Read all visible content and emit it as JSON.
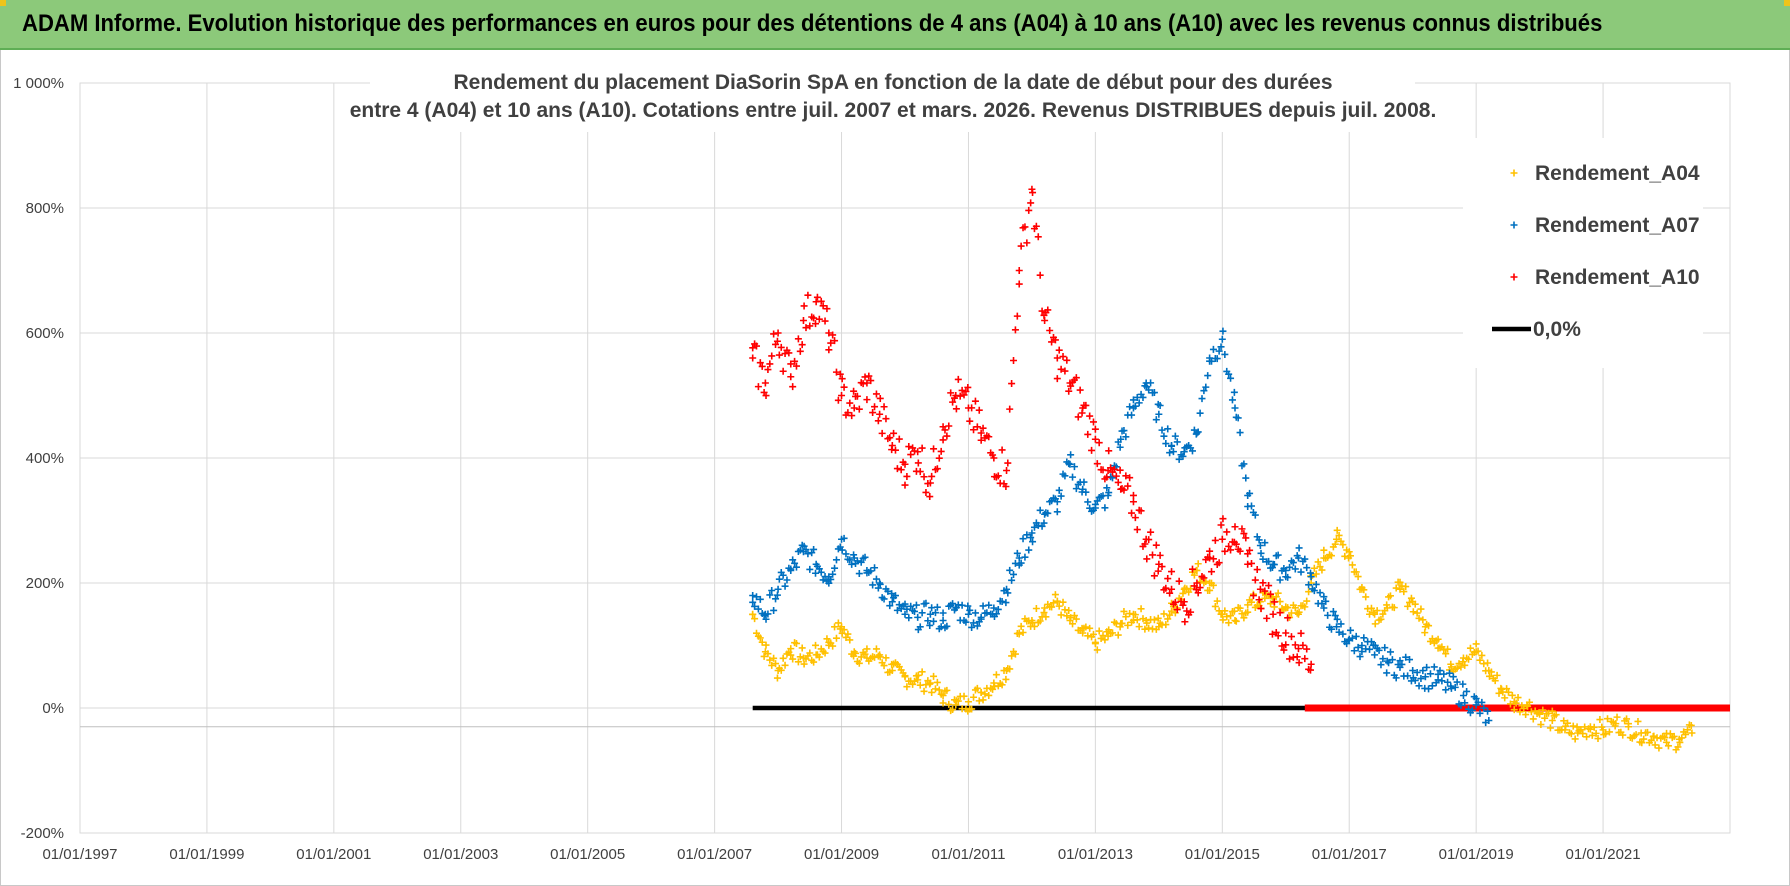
{
  "header": {
    "title": "ADAM Informe. Evolution historique des performances en euros pour des détentions de 4 ans (A04) à 10 ans (A10) avec les revenus connus distribués"
  },
  "colors": {
    "banner": "#8cc97a",
    "a04": "#ffc000",
    "a07": "#0070c0",
    "a10": "#ff0000",
    "zero": "#000000",
    "grid": "#d9d9d9"
  },
  "chart_data": {
    "type": "scatter",
    "title_lines": [
      "Rendement du placement DiaSorin SpA en fonction de la date de début pour des durées",
      "entre 4 (A04) et 10 ans (A10).  Cotations entre juil. 2007 et mars. 2026. Revenus DISTRIBUES depuis juil. 2008."
    ],
    "xlabel": "",
    "ylabel": "",
    "xlim": [
      1997.0,
      2023.0
    ],
    "ylim": [
      -200,
      1000
    ],
    "grid": true,
    "legend_position": "top-right",
    "x_ticks": [
      {
        "value": 1997,
        "label": "01/01/1997"
      },
      {
        "value": 1999,
        "label": "01/01/1999"
      },
      {
        "value": 2001,
        "label": "01/01/2001"
      },
      {
        "value": 2003,
        "label": "01/01/2003"
      },
      {
        "value": 2005,
        "label": "01/01/2005"
      },
      {
        "value": 2007,
        "label": "01/01/2007"
      },
      {
        "value": 2009,
        "label": "01/01/2009"
      },
      {
        "value": 2011,
        "label": "01/01/2011"
      },
      {
        "value": 2013,
        "label": "01/01/2013"
      },
      {
        "value": 2015,
        "label": "01/01/2015"
      },
      {
        "value": 2017,
        "label": "01/01/2017"
      },
      {
        "value": 2019,
        "label": "01/01/2019"
      },
      {
        "value": 2021,
        "label": "01/01/2021"
      }
    ],
    "y_ticks": [
      {
        "value": 1000,
        "label": "1 000%"
      },
      {
        "value": 800,
        "label": "800%"
      },
      {
        "value": 600,
        "label": "600%"
      },
      {
        "value": 400,
        "label": "400%"
      },
      {
        "value": 200,
        "label": "200%"
      },
      {
        "value": 0,
        "label": "0%"
      },
      {
        "value": -200,
        "label": "-200%"
      }
    ],
    "legend": [
      {
        "name": "Rendement_A04",
        "marker": "plus"
      },
      {
        "name": "Rendement_A07",
        "marker": "plus"
      },
      {
        "name": "Rendement_A10",
        "marker": "plus"
      },
      {
        "name": "0,0%",
        "marker": "line"
      }
    ],
    "series": [
      {
        "name": "Rendement_A04",
        "x": [
          2007.6,
          2007.8,
          2008.0,
          2008.2,
          2008.4,
          2008.6,
          2008.8,
          2009.0,
          2009.2,
          2009.4,
          2009.6,
          2009.8,
          2010.0,
          2010.2,
          2010.4,
          2010.6,
          2010.8,
          2011.0,
          2011.2,
          2011.4,
          2011.6,
          2011.8,
          2012.0,
          2012.2,
          2012.4,
          2012.6,
          2012.8,
          2013.0,
          2013.2,
          2013.4,
          2013.6,
          2013.8,
          2014.0,
          2014.2,
          2014.4,
          2014.6,
          2014.8,
          2015.0,
          2015.2,
          2015.4,
          2015.6,
          2015.8,
          2016.0,
          2016.2,
          2016.4,
          2016.6,
          2016.8,
          2017.0,
          2017.2,
          2017.4,
          2017.6,
          2017.8,
          2018.0,
          2018.2,
          2018.4,
          2018.6,
          2018.8,
          2019.0,
          2019.2,
          2019.4,
          2019.6,
          2019.8,
          2020.0,
          2020.2,
          2020.4,
          2020.6,
          2020.8,
          2021.0,
          2021.2,
          2021.4,
          2021.6,
          2021.8,
          2022.0,
          2022.2,
          2022.4
        ],
        "values": [
          150,
          90,
          60,
          95,
          80,
          85,
          105,
          130,
          90,
          80,
          85,
          60,
          50,
          45,
          40,
          20,
          5,
          10,
          25,
          40,
          60,
          120,
          140,
          160,
          170,
          140,
          120,
          105,
          115,
          135,
          150,
          140,
          130,
          155,
          190,
          220,
          200,
          150,
          140,
          165,
          170,
          175,
          160,
          150,
          200,
          240,
          270,
          250,
          190,
          150,
          160,
          190,
          170,
          130,
          110,
          70,
          80,
          90,
          60,
          30,
          10,
          5,
          -10,
          -20,
          -35,
          -40,
          -30,
          -35,
          -25,
          -30,
          -40,
          -45,
          -55,
          -50,
          -40
        ]
      },
      {
        "name": "Rendement_A07",
        "x": [
          2007.6,
          2007.8,
          2008.0,
          2008.2,
          2008.4,
          2008.6,
          2008.8,
          2009.0,
          2009.2,
          2009.4,
          2009.6,
          2009.8,
          2010.0,
          2010.2,
          2010.4,
          2010.6,
          2010.8,
          2011.0,
          2011.2,
          2011.4,
          2011.6,
          2011.8,
          2012.0,
          2012.2,
          2012.4,
          2012.6,
          2012.8,
          2013.0,
          2013.2,
          2013.4,
          2013.6,
          2013.8,
          2014.0,
          2014.2,
          2014.4,
          2014.6,
          2014.8,
          2015.0,
          2015.2,
          2015.4,
          2015.6,
          2015.8,
          2016.0,
          2016.2,
          2016.4,
          2016.6,
          2016.8,
          2017.0,
          2017.2,
          2017.4,
          2017.6,
          2017.8,
          2018.0,
          2018.2,
          2018.4,
          2018.6,
          2018.8,
          2019.0,
          2019.2
        ],
        "values": [
          180,
          150,
          190,
          220,
          250,
          230,
          210,
          270,
          240,
          220,
          200,
          170,
          150,
          145,
          150,
          140,
          160,
          150,
          145,
          160,
          190,
          240,
          280,
          310,
          330,
          390,
          350,
          320,
          340,
          430,
          480,
          520,
          470,
          420,
          410,
          440,
          560,
          590,
          480,
          340,
          260,
          230,
          220,
          240,
          210,
          160,
          130,
          110,
          100,
          85,
          75,
          65,
          60,
          50,
          45,
          35,
          20,
          5,
          -20
        ]
      },
      {
        "name": "Rendement_A10",
        "x": [
          2007.6,
          2007.8,
          2008.0,
          2008.2,
          2008.4,
          2008.6,
          2008.8,
          2009.0,
          2009.2,
          2009.4,
          2009.6,
          2009.8,
          2010.0,
          2010.2,
          2010.4,
          2010.6,
          2010.8,
          2011.0,
          2011.2,
          2011.4,
          2011.6,
          2011.8,
          2012.0,
          2012.2,
          2012.4,
          2012.6,
          2012.8,
          2013.0,
          2013.2,
          2013.4,
          2013.6,
          2013.8,
          2014.0,
          2014.2,
          2014.4,
          2014.6,
          2014.8,
          2015.0,
          2015.2,
          2015.4,
          2015.6,
          2015.8,
          2016.0,
          2016.2,
          2016.4
        ],
        "values": [
          560,
          520,
          600,
          530,
          620,
          650,
          600,
          500,
          480,
          520,
          470,
          420,
          390,
          410,
          360,
          450,
          500,
          480,
          440,
          400,
          380,
          700,
          830,
          620,
          560,
          520,
          480,
          430,
          380,
          350,
          330,
          270,
          230,
          190,
          170,
          200,
          240,
          270,
          290,
          230,
          190,
          150,
          120,
          95,
          70
        ]
      },
      {
        "name": "0,0%",
        "type": "line",
        "x": [
          2007.6,
          2023.0
        ],
        "values": [
          0,
          0
        ]
      }
    ],
    "a10_zero_band": {
      "x_start": 2016.3,
      "x_end": 2023.0,
      "value": 0
    }
  }
}
